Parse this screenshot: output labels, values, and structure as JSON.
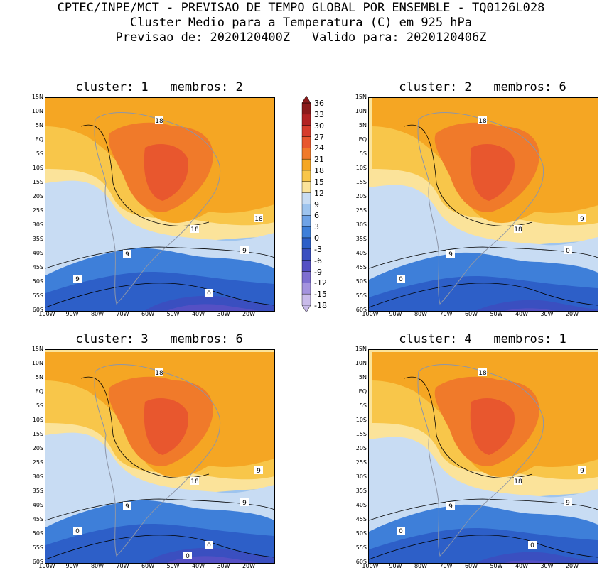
{
  "header": {
    "line1": "CPTEC/INPE/MCT - PREVISAO DE TEMPO GLOBAL POR ENSEMBLE - TQ0126L028",
    "line2": "Cluster Medio para a Temperatura (C) em 925 hPa",
    "line3": "Previsao de: 2020120400Z   Valido para: 2020120406Z"
  },
  "axes": {
    "lat_labels": [
      "15N",
      "10N",
      "5N",
      "EQ",
      "5S",
      "10S",
      "15S",
      "20S",
      "25S",
      "30S",
      "35S",
      "40S",
      "45S",
      "50S",
      "55S",
      "60S"
    ],
    "lon_labels": [
      "100W",
      "90W",
      "80W",
      "70W",
      "60W",
      "50W",
      "40W",
      "30W",
      "20W"
    ]
  },
  "colorbar": {
    "levels": [
      "36",
      "33",
      "30",
      "27",
      "24",
      "21",
      "18",
      "15",
      "12",
      "9",
      "6",
      "3",
      "0",
      "-3",
      "-6",
      "-9",
      "-12",
      "-15",
      "-18"
    ],
    "colors": [
      "#8b1a1a",
      "#b22222",
      "#d63c2c",
      "#e8572e",
      "#f07a2a",
      "#f5a623",
      "#f8c64a",
      "#fbe39a",
      "#c8dcf3",
      "#9ec4ee",
      "#6fa3e6",
      "#3e7fd9",
      "#2d5fc8",
      "#3a4fc0",
      "#5550c4",
      "#7e6fd0",
      "#a493de",
      "#c9bbea"
    ]
  },
  "panels": [
    {
      "title": "cluster: 1   membros: 2",
      "contour_labels": [
        "18",
        "18",
        "18",
        "9",
        "9",
        "9",
        "0"
      ]
    },
    {
      "title": "cluster: 2   membros: 6",
      "contour_labels": [
        "18",
        "18",
        "9",
        "9",
        "0",
        "0"
      ]
    },
    {
      "title": "cluster: 3   membros: 6",
      "contour_labels": [
        "18",
        "18",
        "9",
        "9",
        "9",
        "0",
        "0",
        "0"
      ]
    },
    {
      "title": "cluster: 4   membros: 1",
      "contour_labels": [
        "18",
        "18",
        "9",
        "9",
        "9",
        "0",
        "0"
      ]
    }
  ]
}
